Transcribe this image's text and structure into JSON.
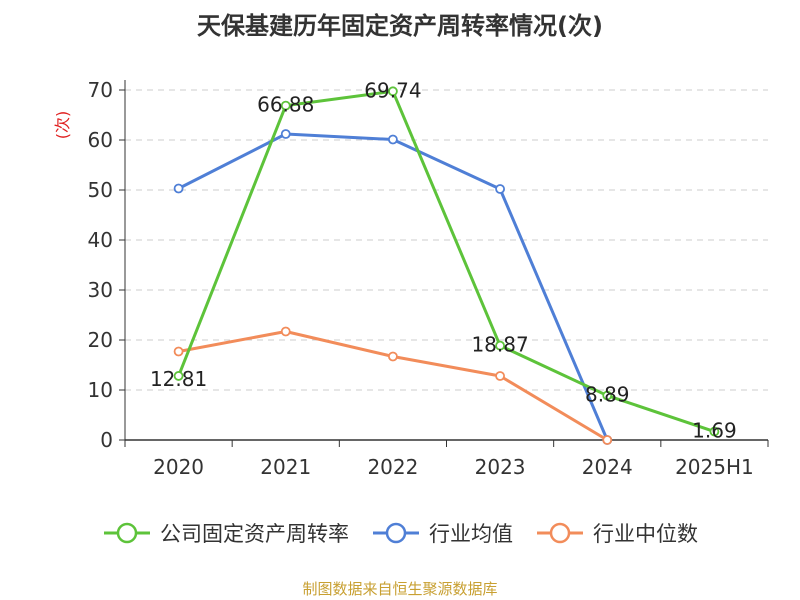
{
  "chart_data": {
    "type": "line",
    "title": "天保基建历年固定资产周转率情况(次)",
    "ylabel": "(次)",
    "xlabel": "",
    "categories": [
      "2020",
      "2021",
      "2022",
      "2023",
      "2024",
      "2025H1"
    ],
    "ylim": [
      0,
      70
    ],
    "yticks": [
      0,
      10,
      20,
      30,
      40,
      50,
      60,
      70
    ],
    "grid": true,
    "legend_position": "bottom",
    "series": [
      {
        "name": "公司固定资产周转率",
        "color": "#5dc33a",
        "values": [
          12.81,
          66.88,
          69.74,
          18.87,
          8.89,
          1.69
        ],
        "labels": [
          "12.81",
          "66.88",
          "69.74",
          "18.87",
          "8.89",
          "1.69"
        ]
      },
      {
        "name": "行业均值",
        "color": "#4f7fd6",
        "values": [
          50.3,
          61.2,
          60.1,
          50.2,
          0.0,
          null
        ]
      },
      {
        "name": "行业中位数",
        "color": "#f28c5a",
        "values": [
          17.7,
          21.7,
          16.7,
          12.8,
          0.0,
          null
        ]
      }
    ]
  },
  "source": "制图数据来自恒生聚源数据库"
}
